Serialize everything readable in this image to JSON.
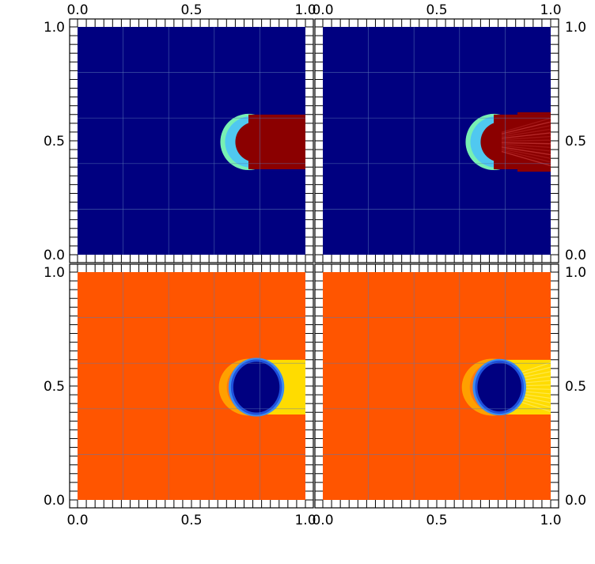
{
  "figure": {
    "colors": {
      "background": "#ffffff",
      "frame": "#000000",
      "grid": "#5a78b4",
      "navy": "#000080",
      "darkred": "#8b0000",
      "red_dark2": "#a01414",
      "red_dark3": "#b42828",
      "cyan": "#78f0b4",
      "cyan2": "#50c8f0",
      "orange": "#ff5500",
      "orange2": "#ff7a14",
      "orange_light": "#ffa000",
      "yellow": "#ffdc00",
      "yellow2": "#ffe84a",
      "blue": "#1e50dc",
      "blue_light": "#3c8cf0"
    }
  },
  "chart_data": [
    {
      "type": "heatmap",
      "panel": "top-left",
      "x_axis": {
        "position": "top",
        "range": [
          0.0,
          1.0
        ],
        "ticks": [
          0.0,
          0.5,
          1.0
        ],
        "tick_labels": [
          "0.0",
          "0.5",
          "1.0"
        ]
      },
      "y_axis": {
        "position": "left",
        "range": [
          0.0,
          1.0
        ],
        "ticks": [
          0.0,
          0.5,
          1.0
        ],
        "tick_labels": [
          "0.0",
          "0.5",
          "1.0"
        ]
      },
      "grid": true,
      "background_color": "navy",
      "features": [
        {
          "kind": "capsule",
          "x_start": 0.63,
          "x_end": 1.0,
          "y_low": 0.375,
          "y_high": 0.615,
          "fill": "darkred",
          "edge": "cyan",
          "trail": "solid"
        }
      ]
    },
    {
      "type": "heatmap",
      "panel": "top-right",
      "x_axis": {
        "position": "top",
        "range": [
          0.0,
          1.0
        ],
        "ticks": [
          0.0,
          0.5,
          1.0
        ],
        "tick_labels": [
          "0.0",
          "0.5",
          "1.0"
        ]
      },
      "y_axis": {
        "position": "right",
        "range": [
          0.0,
          1.0
        ],
        "ticks": [
          0.0,
          0.5,
          1.0
        ],
        "tick_labels": [
          "0.0",
          "0.5",
          "1.0"
        ]
      },
      "grid": true,
      "background_color": "navy",
      "features": [
        {
          "kind": "capsule",
          "x_start": 0.63,
          "x_end": 1.0,
          "y_low": 0.375,
          "y_high": 0.615,
          "fill": "darkred",
          "edge": "cyan",
          "trail": "fanning"
        }
      ]
    },
    {
      "type": "heatmap",
      "panel": "bottom-left",
      "x_axis": {
        "position": "bottom",
        "range": [
          0.0,
          1.0
        ],
        "ticks": [
          0.0,
          0.5,
          1.0
        ],
        "tick_labels": [
          "0.0",
          "0.5",
          "1.0"
        ]
      },
      "y_axis": {
        "position": "left",
        "range": [
          0.0,
          1.0
        ],
        "ticks": [
          0.0,
          0.5,
          1.0
        ],
        "tick_labels": [
          "0.0",
          "0.5",
          "1.0"
        ]
      },
      "grid": true,
      "background_color": "orange",
      "features": [
        {
          "kind": "wake",
          "x_start": 0.78,
          "x_end": 1.0,
          "y_low": 0.375,
          "y_high": 0.615,
          "fill": "yellow",
          "trail": "solid"
        },
        {
          "kind": "halo",
          "cx": 0.755,
          "cy": 0.495,
          "rx": 0.135,
          "ry": 0.125,
          "fill": "orange_light"
        },
        {
          "kind": "blob",
          "cx": 0.785,
          "cy": 0.495,
          "rx": 0.105,
          "ry": 0.115,
          "fill": "navy",
          "edge": "blue"
        }
      ]
    },
    {
      "type": "heatmap",
      "panel": "bottom-right",
      "x_axis": {
        "position": "bottom",
        "range": [
          0.0,
          1.0
        ],
        "ticks": [
          0.0,
          0.5,
          1.0
        ],
        "tick_labels": [
          "0.0",
          "0.5",
          "1.0"
        ]
      },
      "y_axis": {
        "position": "right",
        "range": [
          0.0,
          1.0
        ],
        "ticks": [
          0.0,
          0.5,
          1.0
        ],
        "tick_labels": [
          "0.0",
          "0.5",
          "1.0"
        ]
      },
      "grid": true,
      "background_color": "orange",
      "features": [
        {
          "kind": "wake",
          "x_start": 0.76,
          "x_end": 1.0,
          "y_low": 0.375,
          "y_high": 0.615,
          "fill": "yellow",
          "trail": "fanning"
        },
        {
          "kind": "halo",
          "cx": 0.745,
          "cy": 0.495,
          "rx": 0.135,
          "ry": 0.125,
          "fill": "orange_light"
        },
        {
          "kind": "blob",
          "cx": 0.775,
          "cy": 0.495,
          "rx": 0.1,
          "ry": 0.11,
          "fill": "navy",
          "edge": "blue"
        }
      ]
    }
  ]
}
